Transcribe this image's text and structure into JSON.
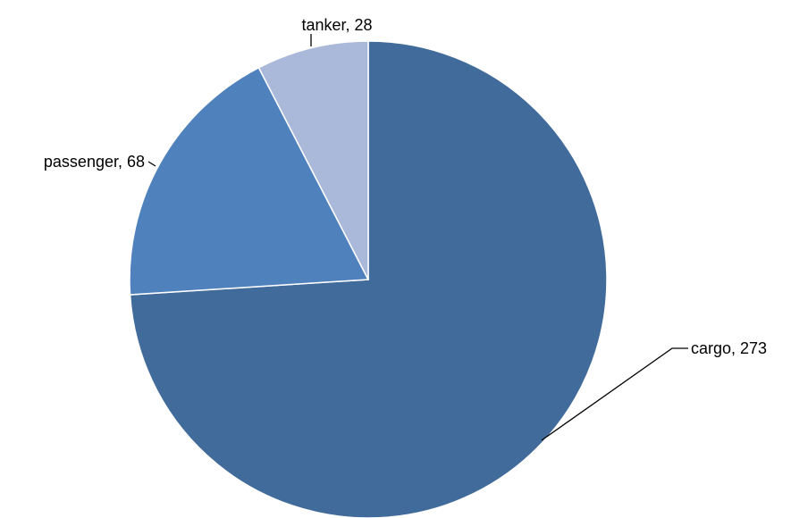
{
  "chart_data": {
    "type": "pie",
    "title": "",
    "categories": [
      "cargo",
      "passenger",
      "tanker"
    ],
    "values": [
      273,
      68,
      28
    ],
    "colors": [
      "#416b9b",
      "#4f81bd",
      "#aab9d9"
    ],
    "start": "12 o'clock",
    "direction": "clockwise",
    "data_labels": {
      "cargo": "cargo, 273",
      "passenger": "passenger, 68",
      "tanker": "tanker, 28"
    },
    "legend": "none"
  }
}
